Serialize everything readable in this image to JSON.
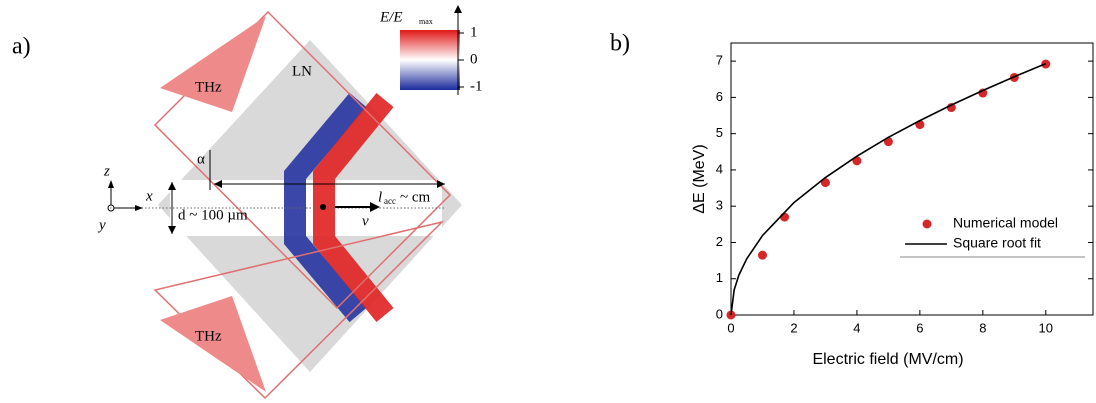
{
  "panel_a": {
    "label": "a)",
    "thz_top": "THz",
    "thz_bottom": "THz",
    "crystal": "LN",
    "angle": "α",
    "axis_z": "z",
    "axis_x": "x",
    "axis_y": "y",
    "width": "d ~  100 µm",
    "length_symbol": "l",
    "length_subscript": "acc",
    "length_value": "~  cm",
    "velocity": "v",
    "colorbar_title": "E/E",
    "colorbar_subscript": "max",
    "colorbar_ticks": [
      "1",
      "0",
      "-1"
    ]
  },
  "panel_b": {
    "label": "b)"
  },
  "chart_data": {
    "type": "scatter",
    "x_label": "Electric field (MV/cm)",
    "y_label": "ΔE (MeV)",
    "xlim": [
      0,
      11.5
    ],
    "ylim": [
      0,
      7.5
    ],
    "xticks": [
      0,
      2,
      4,
      6,
      8,
      10
    ],
    "yticks": [
      0,
      1,
      2,
      3,
      4,
      5,
      6,
      7
    ],
    "legend": "right",
    "series": [
      {
        "name": "Numerical model",
        "color": "#d62728",
        "style": "markers",
        "x": [
          0,
          1,
          1.7,
          3,
          4,
          5,
          6,
          7,
          8,
          9,
          10
        ],
        "values": [
          0,
          1.65,
          2.7,
          3.65,
          4.25,
          4.78,
          5.25,
          5.72,
          6.12,
          6.55,
          6.92
        ]
      },
      {
        "name": "Square root fit",
        "color": "#000000",
        "style": "line",
        "x": [
          0,
          0.1,
          0.25,
          0.5,
          1,
          2,
          3,
          4,
          5,
          6,
          7,
          8,
          9,
          10
        ],
        "values": [
          0,
          0.69,
          1.1,
          1.55,
          2.19,
          3.1,
          3.79,
          4.38,
          4.9,
          5.36,
          5.79,
          6.19,
          6.57,
          6.93
        ]
      }
    ]
  }
}
